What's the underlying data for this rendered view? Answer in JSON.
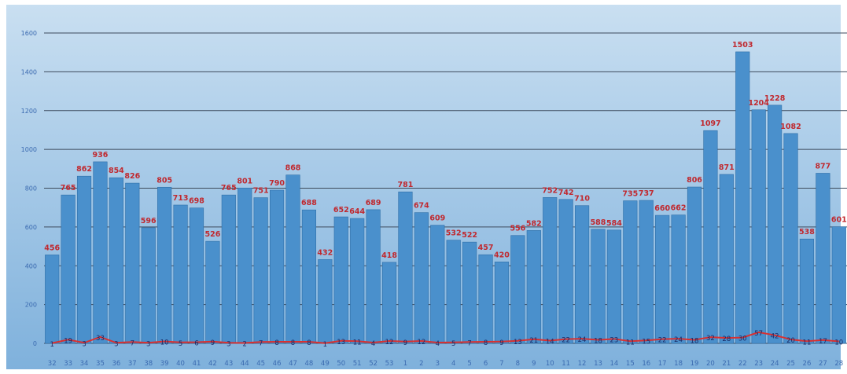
{
  "chart_data": {
    "type": "bar",
    "ylim": [
      0,
      1600
    ],
    "y_ticks": [
      "0",
      "200",
      "400",
      "600",
      "800",
      "1000",
      "1200",
      "1400",
      "1600"
    ],
    "grid": true,
    "categories": [
      "32",
      "33",
      "34",
      "35",
      "36",
      "37",
      "38",
      "39",
      "40",
      "41",
      "42",
      "43",
      "44",
      "45",
      "46",
      "47",
      "48",
      "49",
      "50",
      "51",
      "52",
      "53",
      "1",
      "2",
      "3",
      "4",
      "5",
      "6",
      "7",
      "8",
      "9",
      "10",
      "11",
      "12",
      "13",
      "14",
      "15",
      "16",
      "17",
      "18",
      "19",
      "20",
      "21",
      "22",
      "23",
      "24",
      "25",
      "26",
      "27",
      "28"
    ],
    "series": [
      {
        "type": "bar",
        "values": [
          456,
          765,
          862,
          936,
          854,
          826,
          596,
          805,
          713,
          698,
          526,
          765,
          801,
          751,
          790,
          868,
          688,
          432,
          652,
          644,
          689,
          418,
          781,
          674,
          609,
          532,
          522,
          457,
          420,
          556,
          582,
          752,
          742,
          710,
          588,
          584,
          735,
          737,
          660,
          662,
          806,
          1097,
          871,
          1503,
          1204,
          1228,
          1082,
          538,
          877,
          601
        ],
        "color": "#4a90cc"
      },
      {
        "type": "line",
        "values": [
          1,
          19,
          3,
          33,
          3,
          7,
          3,
          10,
          5,
          6,
          9,
          3,
          2,
          7,
          8,
          8,
          8,
          1,
          13,
          11,
          4,
          12,
          9,
          12,
          4,
          5,
          7,
          8,
          9,
          13,
          21,
          14,
          22,
          24,
          18,
          23,
          11,
          15,
          22,
          24,
          18,
          32,
          28,
          30,
          57,
          42,
          20,
          11,
          17,
          10
        ],
        "color": "#d93030"
      }
    ]
  },
  "colors": {
    "bar": "#4a90cc",
    "bar_edge": "#2f6fa8",
    "line": "#d93030",
    "bar_label": "#c0282e",
    "line_label": "#1a2a66",
    "tick_label": "#3a6ab0",
    "gridline": "#3d4a5c",
    "bg_top": "#c9dff1",
    "bg_bottom": "#7fb1dc"
  }
}
